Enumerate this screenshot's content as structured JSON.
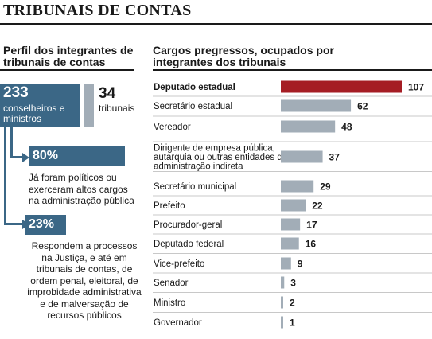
{
  "title": "TRIBUNAIS DE CONTAS",
  "left": {
    "heading": "Perfil dos integrantes de tribunais de contas",
    "members_value": "233",
    "members_label": "conselheiros e ministros",
    "courts_value": "34",
    "courts_label": "tribunais",
    "stats": [
      {
        "value": "80%",
        "text": "Já foram políticos ou exerceram altos cargos na administração pública"
      },
      {
        "value": "23%",
        "text": "Respondem a processos na Justiça, e até em tribunais de contas, de ordem penal, eleitoral, de improbidade administrativa e de malversação de recursos públicos"
      }
    ]
  },
  "colors": {
    "highlight": "#a51d24",
    "bar": "#a2adb7",
    "accent": "#3b6786"
  },
  "chart_data": {
    "type": "bar",
    "orientation": "horizontal",
    "title": "Cargos pregressos, ocupados por integrantes dos tribunais",
    "categories": [
      "Deputado estadual",
      "Secretário estadual",
      "Vereador",
      "Dirigente de empresa pública, autarquia ou outras entidades da administração indireta",
      "Secretário municipal",
      "Prefeito",
      "Procurador-geral",
      "Deputado federal",
      "Vice-prefeito",
      "Senador",
      "Ministro",
      "Governador"
    ],
    "values": [
      107,
      62,
      48,
      37,
      29,
      22,
      17,
      16,
      9,
      3,
      2,
      1
    ],
    "highlighted_category": "Deputado estadual",
    "grid": false
  }
}
